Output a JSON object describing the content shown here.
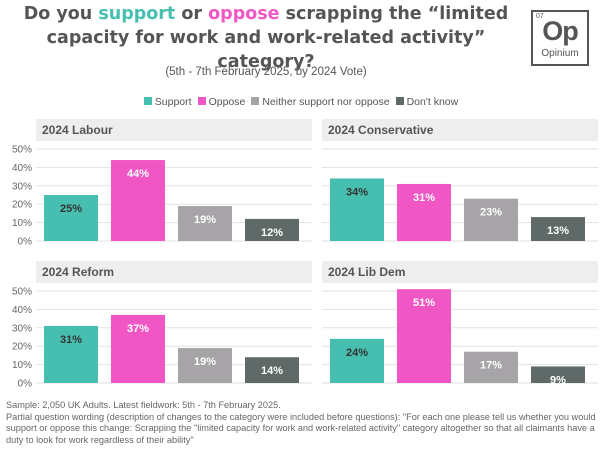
{
  "title": {
    "part1": "Do you ",
    "support": "support",
    "part2": " or ",
    "oppose": "oppose",
    "part3": " scrapping the “limited capacity for work and work-related activity” category?"
  },
  "subtitle": "(5th - 7th February 2025, by 2024 Vote)",
  "logo": {
    "superscript": "07",
    "mark": "Op",
    "name": "Opinium"
  },
  "colors": {
    "support": "#46bfb0",
    "oppose": "#f057c4",
    "neither": "#a7a4a8",
    "dontknow": "#5f6a68"
  },
  "legend": [
    {
      "label": "Support",
      "color_key": "support"
    },
    {
      "label": "Oppose",
      "color_key": "oppose"
    },
    {
      "label": "Neither support nor oppose",
      "color_key": "neither"
    },
    {
      "label": "Don't know",
      "color_key": "dontknow"
    }
  ],
  "chart_data": [
    {
      "type": "bar",
      "title": "2024 Labour",
      "categories": [
        "Support",
        "Oppose",
        "Neither support nor oppose",
        "Don't know"
      ],
      "values": [
        25,
        44,
        19,
        12
      ],
      "ylim": [
        0,
        50
      ],
      "yticks": [
        "0%",
        "10%",
        "20%",
        "30%",
        "40%",
        "50%"
      ],
      "data_labels": [
        "25%",
        "44%",
        "19%",
        "12%"
      ]
    },
    {
      "type": "bar",
      "title": "2024 Conservative",
      "categories": [
        "Support",
        "Oppose",
        "Neither support nor oppose",
        "Don't know"
      ],
      "values": [
        34,
        31,
        23,
        13
      ],
      "ylim": [
        0,
        50
      ],
      "yticks": [],
      "data_labels": [
        "34%",
        "31%",
        "23%",
        "13%"
      ]
    },
    {
      "type": "bar",
      "title": "2024 Reform",
      "categories": [
        "Support",
        "Oppose",
        "Neither support nor oppose",
        "Don't know"
      ],
      "values": [
        31,
        37,
        19,
        14
      ],
      "ylim": [
        0,
        50
      ],
      "yticks": [
        "0%",
        "10%",
        "20%",
        "30%",
        "40%",
        "50%"
      ],
      "data_labels": [
        "31%",
        "37%",
        "19%",
        "14%"
      ]
    },
    {
      "type": "bar",
      "title": "2024 Lib Dem",
      "categories": [
        "Support",
        "Oppose",
        "Neither support nor oppose",
        "Don't know"
      ],
      "values": [
        24,
        51,
        17,
        9
      ],
      "ylim": [
        0,
        50
      ],
      "yticks": [],
      "data_labels": [
        "24%",
        "51%",
        "17%",
        "9%"
      ]
    }
  ],
  "footnote": {
    "line1": "Sample: 2,050 UK Adults. Latest fieldwork: 5th - 7th February 2025.",
    "line2": "Partial question wording (description of changes to the category were included before questions): \"For each one please tell us whether you would support or oppose this change: Scrapping the \"limited capacity for work and work-related activity\" category altogether so that all claimants have a duty to look for work regardless of their ability\""
  }
}
